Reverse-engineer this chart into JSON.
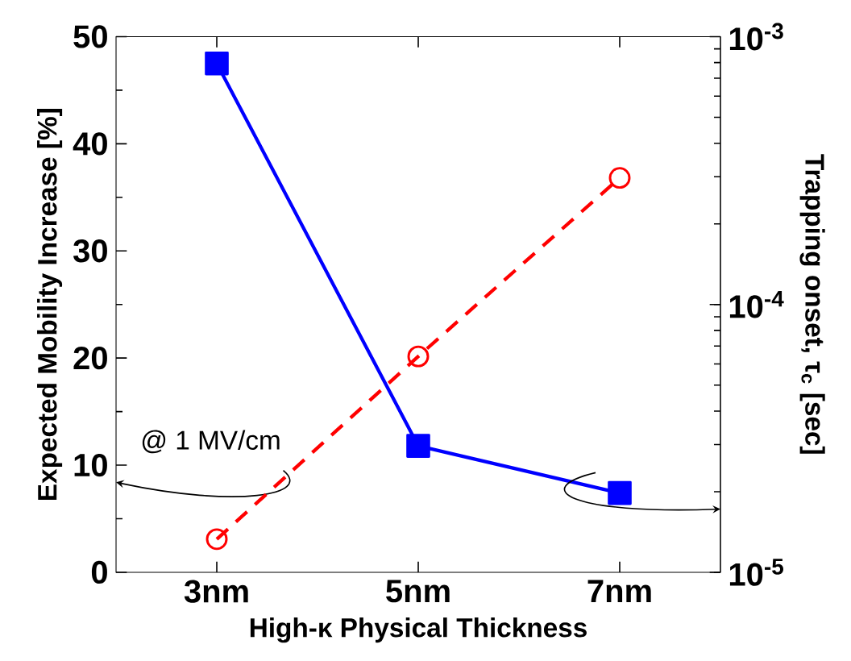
{
  "chart_data": {
    "type": "line",
    "xlabel": "High-κ Physical Thickness",
    "ylabel": "Expected Mobility Increase [%]",
    "y2label": "Trapping onset, τ$_{c}$ [sec]",
    "annotations": [
      "@ 1 MV/cm"
    ],
    "categories": [
      "3nm",
      "5nm",
      "7nm"
    ],
    "ylim": [
      0,
      50
    ],
    "yticks": [
      0,
      10,
      20,
      30,
      40,
      50
    ],
    "y2lim": [
      1e-05,
      0.001
    ],
    "y2ticks": [
      {
        "value": 1e-05,
        "label": "10$^{-5}$"
      },
      {
        "value": 0.0001,
        "label": "10$^{-4}$"
      },
      {
        "value": 0.001,
        "label": "10$^{-3}$"
      }
    ],
    "log": "y2",
    "series": [
      {
        "color": "#0000ff",
        "values": [
          47.5,
          11.8,
          7.4
        ],
        "marker": "square",
        "line_style": "solid"
      },
      {
        "color": "#ff0000",
        "values": [
          1.33e-05,
          6.4e-05,
          0.000297
        ],
        "axis": "y2",
        "marker": "circle",
        "line_style": "dashed"
      }
    ]
  }
}
